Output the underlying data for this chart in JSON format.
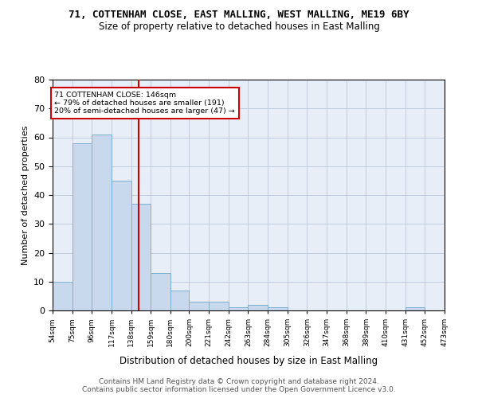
{
  "title": "71, COTTENHAM CLOSE, EAST MALLING, WEST MALLING, ME19 6BY",
  "subtitle": "Size of property relative to detached houses in East Malling",
  "xlabel": "Distribution of detached houses by size in East Malling",
  "ylabel": "Number of detached properties",
  "bar_color": "#c9d9ed",
  "bar_edgecolor": "#7bafd4",
  "bar_linewidth": 0.7,
  "grid_color": "#b8c8dc",
  "background_color": "#e8eef8",
  "annotation_box_color": "#cc0000",
  "vline_color": "#cc0000",
  "vline_x": 146,
  "annotation_line1": "71 COTTENHAM CLOSE: 146sqm",
  "annotation_line2": "← 79% of detached houses are smaller (191)",
  "annotation_line3": "20% of semi-detached houses are larger (47) →",
  "footer_line1": "Contains HM Land Registry data © Crown copyright and database right 2024.",
  "footer_line2": "Contains public sector information licensed under the Open Government Licence v3.0.",
  "bin_edges": [
    54,
    75,
    96,
    117,
    138,
    159,
    180,
    200,
    221,
    242,
    263,
    284,
    305,
    326,
    347,
    368,
    389,
    410,
    431,
    452,
    473
  ],
  "bin_counts": [
    10,
    58,
    61,
    45,
    37,
    13,
    7,
    3,
    3,
    1,
    2,
    1,
    0,
    0,
    0,
    0,
    0,
    0,
    1,
    0
  ],
  "ylim": [
    0,
    80
  ],
  "yticks": [
    0,
    10,
    20,
    30,
    40,
    50,
    60,
    70,
    80
  ],
  "title_fontsize": 9,
  "subtitle_fontsize": 8.5,
  "ylabel_fontsize": 8,
  "xlabel_fontsize": 8.5,
  "footer_fontsize": 6.5
}
